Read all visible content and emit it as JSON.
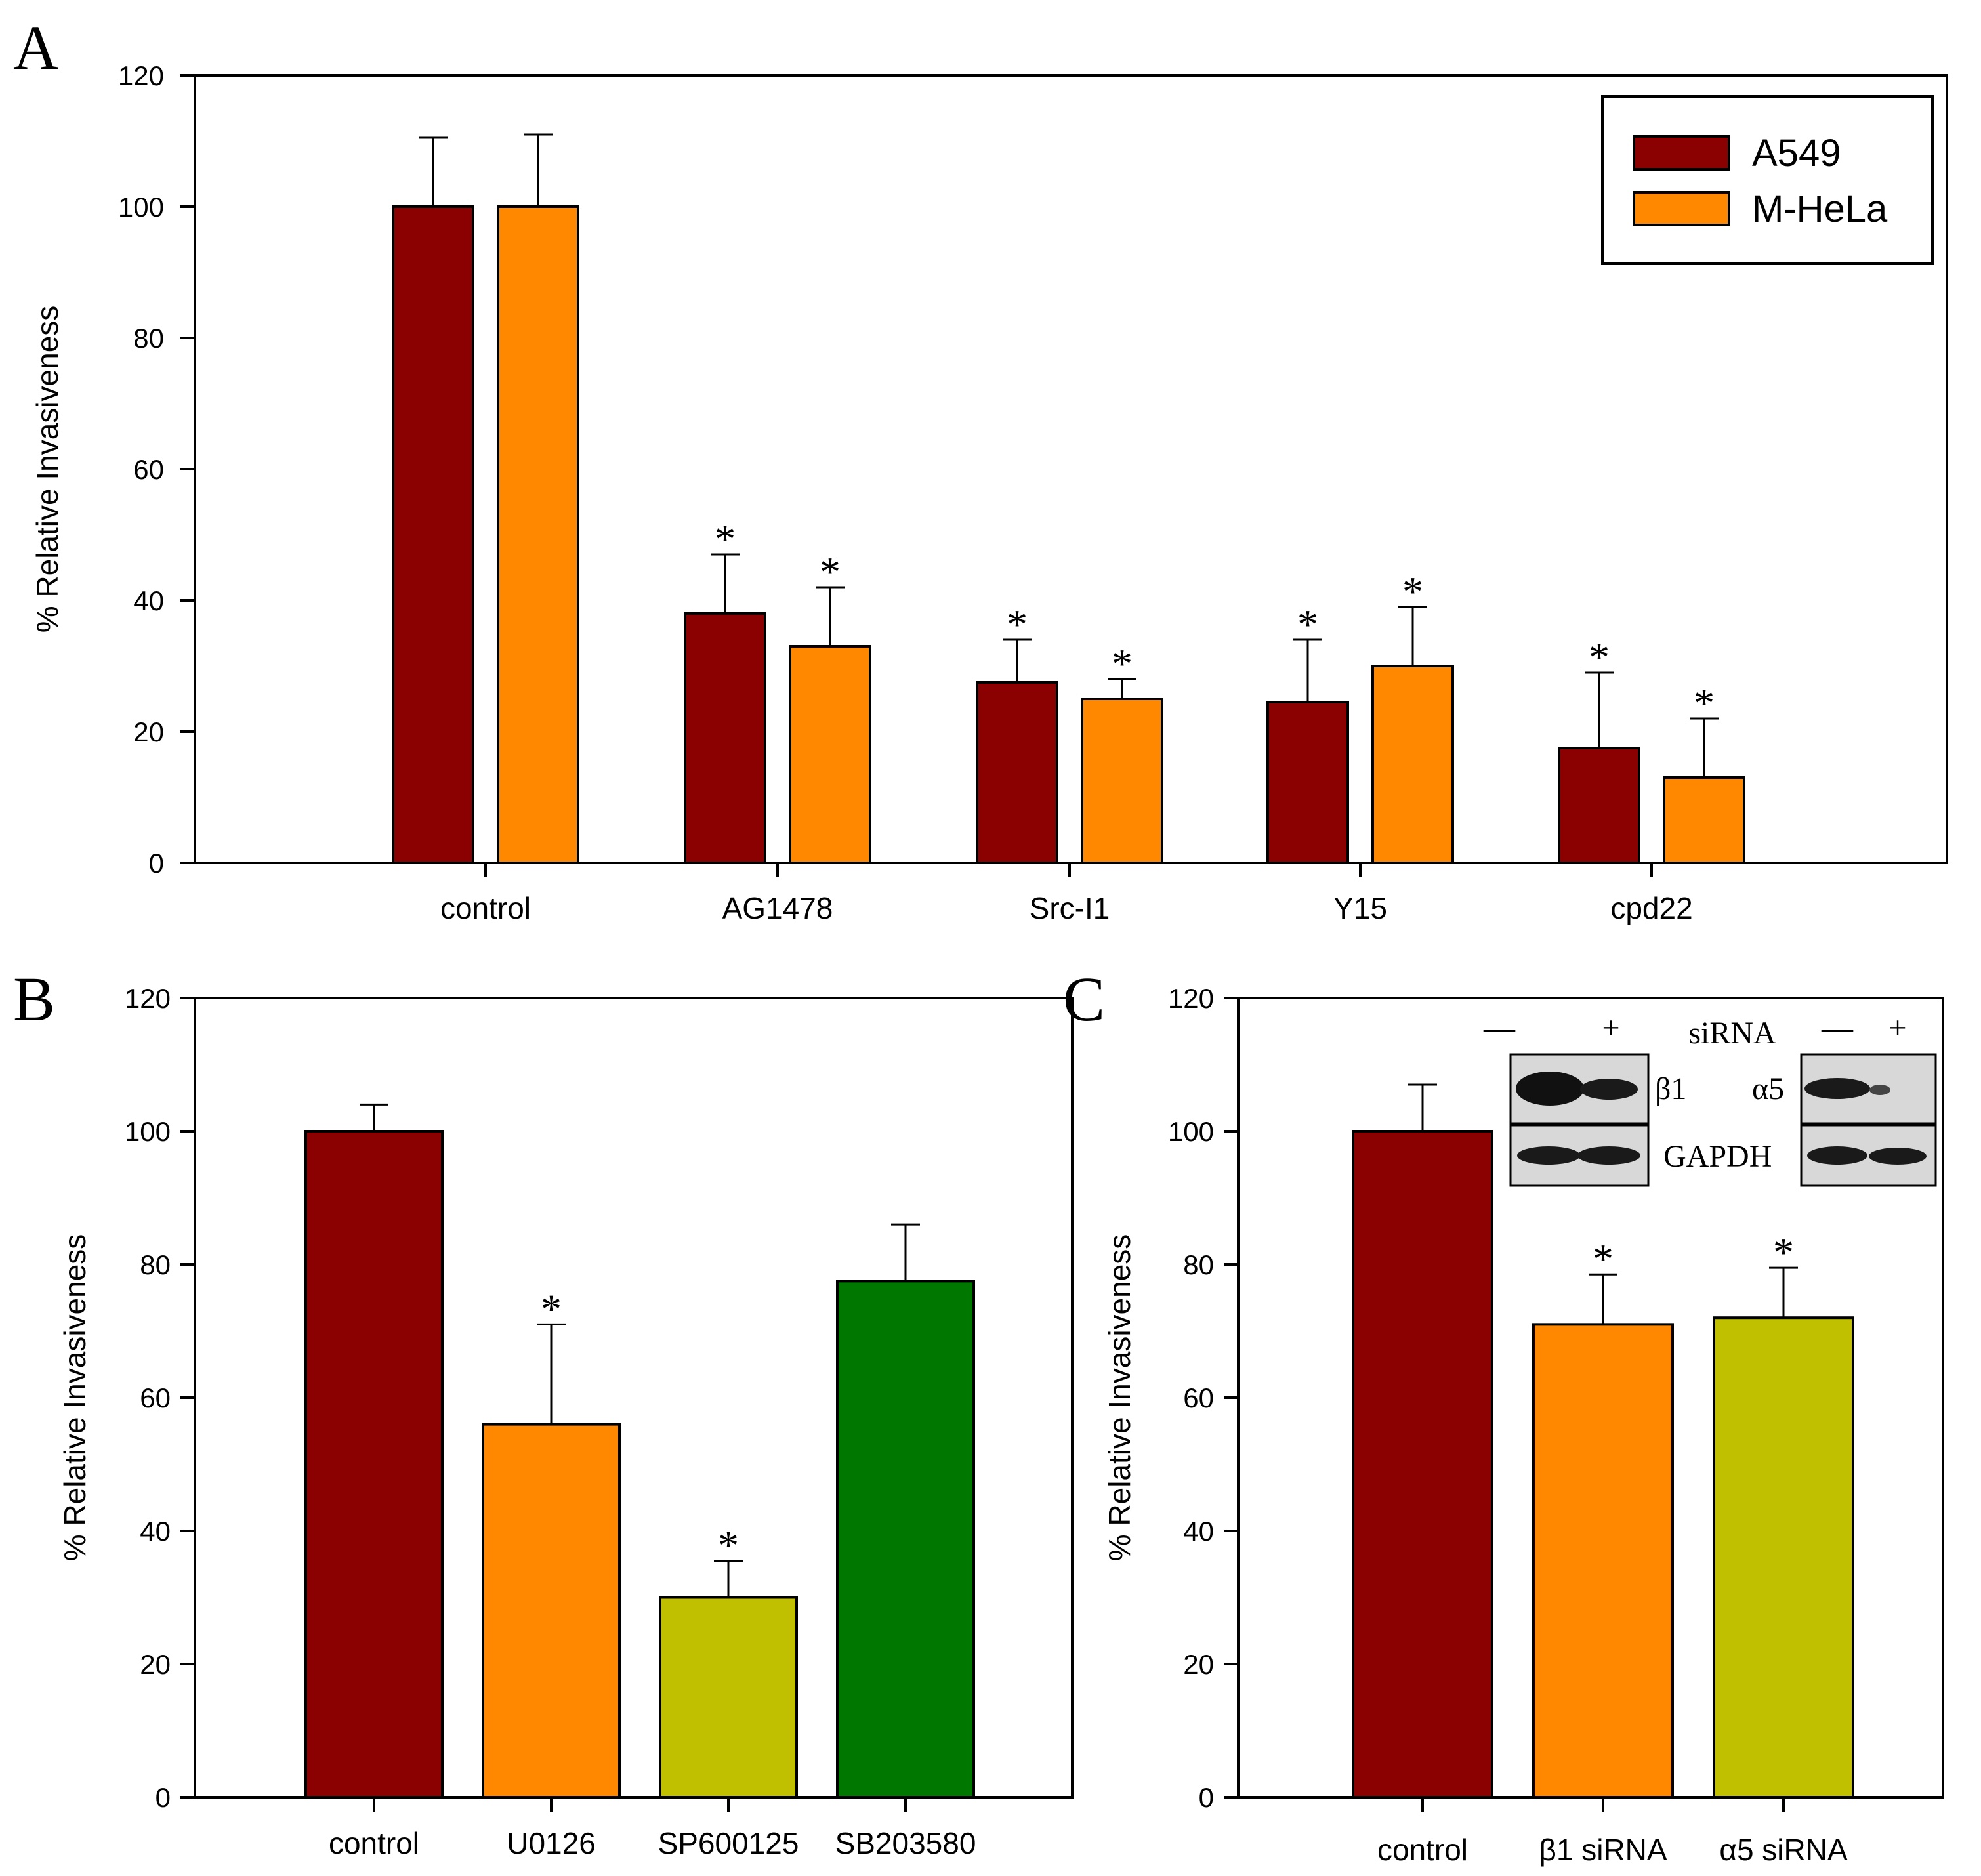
{
  "colors": {
    "A549": "#8b0000",
    "MHeLa": "#ff8800",
    "olive": "#c0c000",
    "green": "#007800"
  },
  "chart_data": [
    {
      "panel": "A",
      "type": "bar",
      "ylabel": "% Relative Invasiveness",
      "ylim": [
        0,
        120
      ],
      "yticks": [
        "0",
        "20",
        "40",
        "60",
        "80",
        "100",
        "120"
      ],
      "categories": [
        "control",
        "AG1478",
        "Src-I1",
        "Y15",
        "cpd22"
      ],
      "series": [
        {
          "name": "A549",
          "values": [
            100,
            38,
            27.5,
            24.5,
            17.5
          ],
          "errors": [
            10.5,
            9,
            6.5,
            9.5,
            11.5
          ]
        },
        {
          "name": "M-HeLa",
          "values": [
            100,
            33,
            25,
            30,
            13
          ],
          "errors": [
            11,
            9,
            3,
            9,
            9
          ]
        }
      ],
      "significance": [
        [
          "",
          "*",
          "*",
          "*",
          "*"
        ],
        [
          "",
          "*",
          "*",
          "*",
          "*"
        ]
      ],
      "legend": [
        "A549",
        "M-HeLa"
      ]
    },
    {
      "panel": "B",
      "type": "bar",
      "ylabel": "% Relative Invasiveness",
      "ylim": [
        0,
        120
      ],
      "yticks": [
        "0",
        "20",
        "40",
        "60",
        "80",
        "100",
        "120"
      ],
      "categories": [
        "control",
        "U0126",
        "SP600125",
        "SB203580"
      ],
      "values": [
        100,
        56,
        30,
        77.5
      ],
      "errors": [
        4,
        15,
        5.5,
        8.5
      ],
      "significance": [
        "",
        "*",
        "*",
        ""
      ]
    },
    {
      "panel": "C",
      "type": "bar",
      "ylabel": "% Relative Invasiveness",
      "ylim": [
        0,
        120
      ],
      "yticks": [
        "0",
        "20",
        "40",
        "60",
        "80",
        "100",
        "120"
      ],
      "categories": [
        "control",
        "β1 siRNA",
        "α5 siRNA"
      ],
      "values": [
        100,
        71,
        72
      ],
      "errors": [
        7,
        7.5,
        7.5
      ],
      "significance": [
        "",
        "*",
        "*"
      ]
    }
  ],
  "inset": {
    "minus": "—",
    "plus": "+",
    "sirna": "siRNA",
    "beta1": "β1",
    "alpha5": "α5",
    "gapdh": "GAPDH"
  }
}
